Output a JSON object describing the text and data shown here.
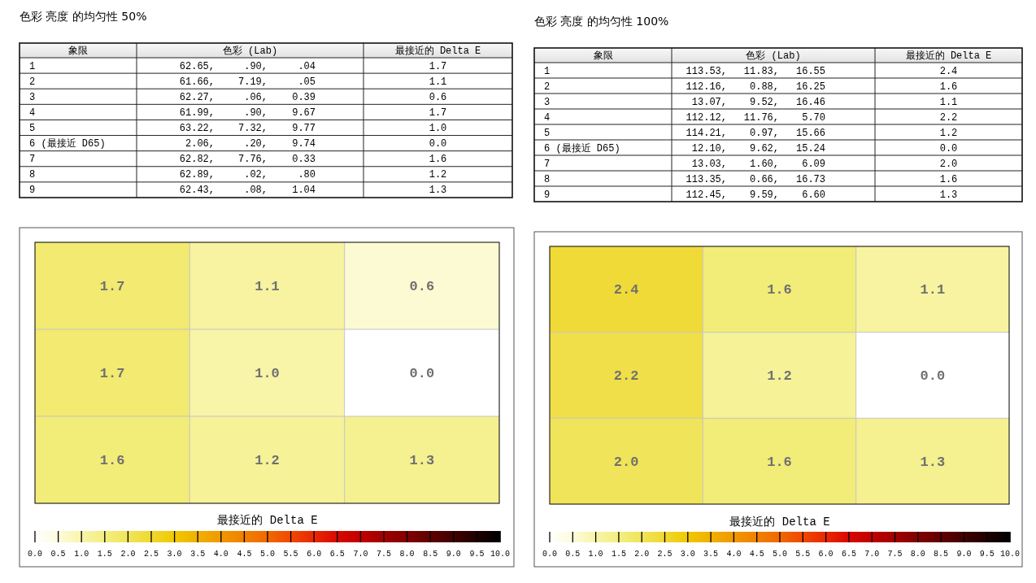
{
  "chart_data": [
    {
      "type": "other",
      "title": "色彩 亮度 的均匀性 50%",
      "annotations": [
        "象限",
        "色彩 (Lab)",
        "最接近的 Delta E",
        "1",
        "62.65,",
        ".90,",
        ".04",
        "1.7",
        "2",
        "61.66,",
        "7.19,",
        ".05",
        "1.1",
        "3",
        "62.27,",
        ".06,",
        "0.39",
        "0.6",
        "4",
        "61.99,",
        ".90,",
        "9.67",
        "1.7",
        "5",
        "63.22,",
        "7.32,",
        "9.77",
        "1.0",
        "6 (最接近 D65)",
        "2.06,",
        ".20,",
        "9.74",
        "0.0",
        "7",
        "62.82,",
        "7.76,",
        "0.33",
        "1.6",
        "8",
        "62.89,",
        ".02,",
        ".80",
        "1.2",
        "9",
        "62.43,",
        ".08,",
        "1.04",
        "1.3"
      ]
    },
    {
      "type": "other",
      "title": "色彩 亮度 的均匀性 100%",
      "annotations": [
        "象限",
        "色彩 (Lab)",
        "最接近的 Delta E",
        "1",
        "113.53,",
        "11.83,",
        "16.55",
        "2.4",
        "2",
        "112.16,",
        "0.88,",
        "16.25",
        "1.6",
        "3",
        "13.07,",
        "9.52,",
        "16.46",
        "1.1",
        "4",
        "112.12,",
        "11.76,",
        "5.70",
        "2.2",
        "5",
        "114.21,",
        "0.97,",
        "15.66",
        "1.2",
        "6 (最接近 D65)",
        "12.10,",
        "9.62,",
        "15.24",
        "0.0",
        "7",
        "13.03,",
        "1.60,",
        "6.09",
        "2.0",
        "8",
        "113.35,",
        "0.66,",
        "16.73",
        "1.6",
        "9",
        "112.45,",
        "9.59,",
        "6.60",
        "1.3"
      ]
    },
    {
      "type": "heatmap",
      "categories": [
        null,
        null,
        null
      ],
      "y_categories": [
        null,
        null,
        null
      ],
      "cells": [
        [
          1.7,
          1.1,
          0.6
        ],
        [
          1.7,
          1.0,
          0.0
        ],
        [
          1.6,
          1.2,
          1.3
        ]
      ],
      "cell_labels": [
        [
          "1.7",
          "1.1",
          "0.6"
        ],
        [
          "1.7",
          "1.0",
          "0.0"
        ],
        [
          "1.6",
          "1.2",
          "1.3"
        ]
      ],
      "clabel": "最接近的 Delta E",
      "clim": [
        0,
        10
      ],
      "cticks": [
        {
          "value": 0,
          "label": "0.0"
        },
        {
          "value": 0.5,
          "label": "0.5"
        },
        {
          "value": 1,
          "label": "1.0"
        },
        {
          "value": 1.5,
          "label": "1.5"
        },
        {
          "value": 2,
          "label": "2.0"
        },
        {
          "value": 2.5,
          "label": "2.5"
        },
        {
          "value": 3,
          "label": "3.0"
        },
        {
          "value": 3.5,
          "label": "3.5"
        },
        {
          "value": 4,
          "label": "4.0"
        },
        {
          "value": 4.5,
          "label": "4.5"
        },
        {
          "value": 5,
          "label": "5.0"
        },
        {
          "value": 5.5,
          "label": "5.5"
        },
        {
          "value": 6,
          "label": "6.0"
        },
        {
          "value": 6.5,
          "label": "6.5"
        },
        {
          "value": 7,
          "label": "7.0"
        },
        {
          "value": 7.5,
          "label": "7.5"
        },
        {
          "value": 8,
          "label": "8.0"
        },
        {
          "value": 8.5,
          "label": "8.5"
        },
        {
          "value": 9,
          "label": "9.0"
        },
        {
          "value": 9.5,
          "label": "9.5"
        },
        {
          "value": 10,
          "label": "10.0"
        }
      ],
      "grid": true
    },
    {
      "type": "heatmap",
      "categories": [
        null,
        null,
        null
      ],
      "y_categories": [
        null,
        null,
        null
      ],
      "cells": [
        [
          2.4,
          1.6,
          1.1
        ],
        [
          2.2,
          1.2,
          0.0
        ],
        [
          2.0,
          1.6,
          1.3
        ]
      ],
      "cell_labels": [
        [
          "2.4",
          "1.6",
          "1.1"
        ],
        [
          "2.2",
          "1.2",
          "0.0"
        ],
        [
          "2.0",
          "1.6",
          "1.3"
        ]
      ],
      "clabel": "最接近的 Delta E",
      "clim": [
        0,
        10
      ],
      "cticks": [
        {
          "value": 0,
          "label": "0.0"
        },
        {
          "value": 0.5,
          "label": "0.5"
        },
        {
          "value": 1,
          "label": "1.0"
        },
        {
          "value": 1.5,
          "label": "1.5"
        },
        {
          "value": 2,
          "label": "2.0"
        },
        {
          "value": 2.5,
          "label": "2.5"
        },
        {
          "value": 3,
          "label": "3.0"
        },
        {
          "value": 3.5,
          "label": "3.5"
        },
        {
          "value": 4,
          "label": "4.0"
        },
        {
          "value": 4.5,
          "label": "4.5"
        },
        {
          "value": 5,
          "label": "5.0"
        },
        {
          "value": 5.5,
          "label": "5.5"
        },
        {
          "value": 6,
          "label": "6.0"
        },
        {
          "value": 6.5,
          "label": "6.5"
        },
        {
          "value": 7,
          "label": "7.0"
        },
        {
          "value": 7.5,
          "label": "7.5"
        },
        {
          "value": 8,
          "label": "8.0"
        },
        {
          "value": 8.5,
          "label": "8.5"
        },
        {
          "value": 9,
          "label": "9.0"
        },
        {
          "value": 9.5,
          "label": "9.5"
        },
        {
          "value": 10,
          "label": "10.0"
        }
      ],
      "grid": true
    }
  ]
}
